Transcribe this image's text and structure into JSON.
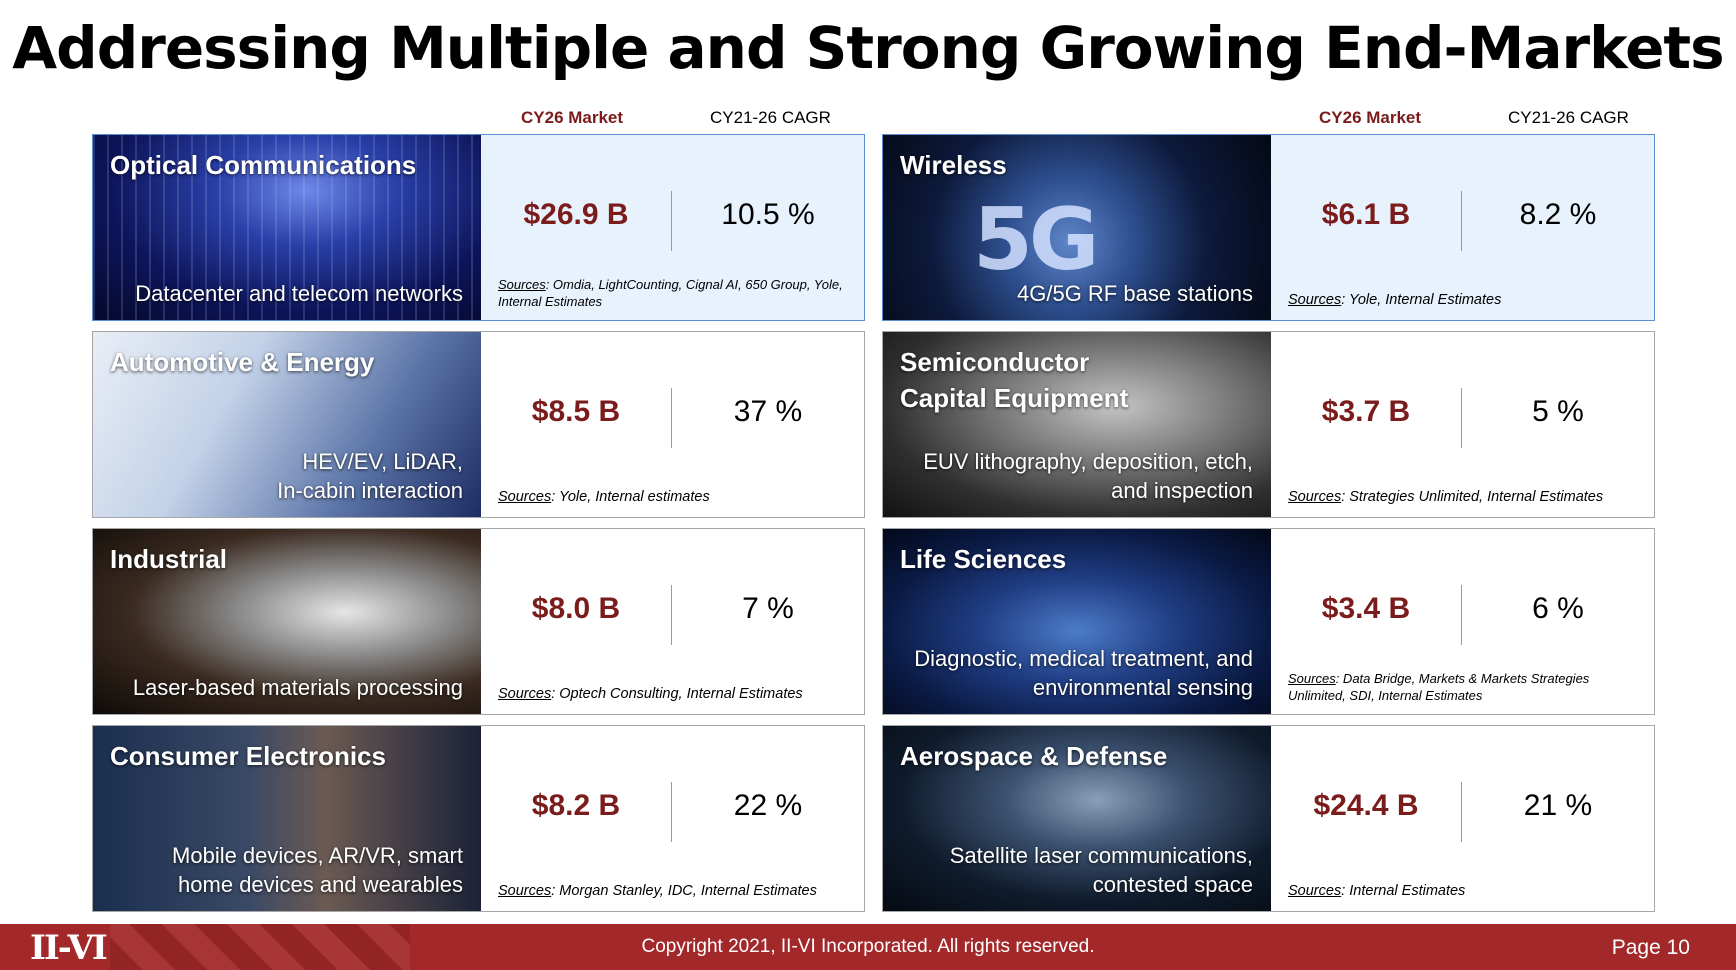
{
  "title": "Addressing Multiple and Strong Growing End-Markets",
  "column_headers": {
    "market": "CY26 Market",
    "cagr": "CY21-26 CAGR"
  },
  "colors": {
    "market_value": "#7b1c1c",
    "footer": "#a3282a",
    "highlight_bg": "#e8f2fc",
    "highlight_border": "#5b8fd0"
  },
  "markets": [
    {
      "name": "Optical Communications",
      "desc": "Datacenter and telecom networks",
      "market": "$26.9 B",
      "cagr": "10.5 %",
      "sources_label": "Sources",
      "sources": ": Omdia, LightCounting, Cignal AI, 650 Group, Yole, Internal Estimates"
    },
    {
      "name": "Wireless",
      "desc": "4G/5G RF base stations",
      "image_text": "5G",
      "market": "$6.1 B",
      "cagr": "8.2 %",
      "sources_label": "Sources",
      "sources": ": Yole, Internal Estimates"
    },
    {
      "name": "Automotive & Energy",
      "desc": "HEV/EV, LiDAR,\nIn-cabin interaction",
      "market": "$8.5 B",
      "cagr": "37 %",
      "sources_label": "Sources",
      "sources": ": Yole, Internal estimates"
    },
    {
      "name": "Semiconductor\nCapital Equipment",
      "desc": "EUV lithography, deposition, etch,\nand inspection",
      "market": "$3.7 B",
      "cagr": "5 %",
      "sources_label": "Sources",
      "sources": ": Strategies Unlimited, Internal Estimates"
    },
    {
      "name": "Industrial",
      "desc": "Laser-based materials processing",
      "market": "$8.0 B",
      "cagr": "7 %",
      "sources_label": "Sources",
      "sources": ": Optech Consulting, Internal Estimates"
    },
    {
      "name": "Life Sciences",
      "desc": "Diagnostic, medical treatment, and\nenvironmental sensing",
      "market": "$3.4 B",
      "cagr": "6 %",
      "sources_label": "Sources",
      "sources": ": Data Bridge, Markets & Markets Strategies Unlimited, SDI, Internal Estimates"
    },
    {
      "name": "Consumer Electronics",
      "desc": "Mobile devices, AR/VR, smart\nhome devices and wearables",
      "market": "$8.2 B",
      "cagr": "22 %",
      "sources_label": "Sources",
      "sources": ": Morgan Stanley, IDC, Internal Estimates"
    },
    {
      "name": "Aerospace & Defense",
      "desc": "Satellite laser communications,\ncontested space",
      "market": "$24.4 B",
      "cagr": "21 %",
      "sources_label": "Sources",
      "sources": ": Internal Estimates"
    }
  ],
  "footer": {
    "logo": "II-VI",
    "copyright": "Copyright 2021, II-VI Incorporated. All rights reserved.",
    "page": "Page 10"
  }
}
